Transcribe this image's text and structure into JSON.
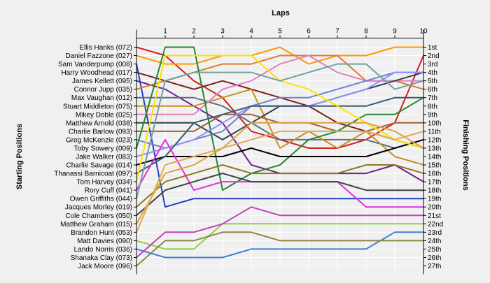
{
  "chart_data": {
    "type": "line",
    "title": "",
    "xlabel": "Laps",
    "ylabel_left": "Starting Positions",
    "ylabel_right": "Finishing Positions",
    "x": [
      0,
      1,
      2,
      3,
      4,
      5,
      6,
      7,
      8,
      9,
      10
    ],
    "x_tick_labels": [
      "1",
      "2",
      "3",
      "4",
      "5",
      "6",
      "7",
      "8",
      "9",
      "10"
    ],
    "y_range": [
      1,
      27
    ],
    "grid": true,
    "left_labels": [
      "Ellis Hanks (072)",
      "Daniel Fazzone (027)",
      "Sam Vanderpump (008)",
      "Harry Woodhead (017)",
      "James Kellett (095)",
      "Connor Jupp (035)",
      "Max Vaughan (012)",
      "Stuart Middleton (075)",
      "Mikey Doble (025)",
      "Matthew Arnold (038)",
      "Charlie Barlow (093)",
      "Greg McKenzie (023)",
      "Toby Sowery (009)",
      "Jake Walker (083)",
      "Charlie Savage (014)",
      "Thanassi Barnicoat (097)",
      "Tom Harvey (034)",
      "Rory Cuff (041)",
      "Owen Griffiths (044)",
      "Jacques Morley (019)",
      "Cole Chambers (050)",
      "Matthew Graham (015)",
      "Brandon Hunt (053)",
      "Matt Davies (090)",
      "Lando Norris (036)",
      "Shanaka Clay (073)",
      "Jack Moore (096)"
    ],
    "right_labels": [
      "1st",
      "2nd",
      "3rd",
      "4th",
      "5th",
      "6th",
      "7th",
      "8th",
      "9th",
      "10th",
      "11th",
      "12th",
      "13th",
      "14th",
      "15th",
      "16th",
      "17th",
      "18th",
      "19th",
      "20th",
      "21st",
      "22nd",
      "23rd",
      "24th",
      "25th",
      "26th",
      "27th"
    ],
    "series": [
      {
        "color": "#d42020",
        "values": [
          1,
          2,
          5,
          7,
          11,
          12,
          13,
          13,
          12,
          10,
          2
        ]
      },
      {
        "color": "#ff9900",
        "values": [
          2,
          3,
          3,
          2,
          2,
          1,
          3,
          2,
          2,
          1,
          1
        ]
      },
      {
        "color": "#2040c0",
        "values": [
          3,
          20,
          19,
          19,
          19,
          19,
          19,
          19,
          19,
          19,
          19
        ]
      },
      {
        "color": "#7a1e1e",
        "values": [
          4,
          5,
          6,
          5,
          6,
          7,
          8,
          10,
          11,
          12,
          13
        ]
      },
      {
        "color": "#6e2288",
        "values": [
          5,
          6,
          8,
          10,
          15,
          16,
          16,
          16,
          16,
          15,
          17
        ]
      },
      {
        "color": "#e07a30",
        "values": [
          6,
          5,
          4,
          3,
          3,
          2,
          2,
          2,
          5,
          5,
          6
        ]
      },
      {
        "color": "#5a6e80",
        "values": [
          7,
          7,
          7,
          8,
          10,
          12,
          12,
          12,
          12,
          13,
          12
        ]
      },
      {
        "color": "#c89020",
        "values": [
          8,
          8,
          8,
          7,
          6,
          13,
          11,
          13,
          11,
          14,
          15
        ]
      },
      {
        "color": "#e080c0",
        "values": [
          9,
          9,
          9,
          6,
          5,
          3,
          2,
          4,
          5,
          5,
          5
        ]
      },
      {
        "color": "#304050",
        "values": [
          10,
          10,
          10,
          12,
          10,
          8,
          8,
          7,
          6,
          5,
          4
        ]
      },
      {
        "color": "#a06030",
        "values": [
          11,
          11,
          11,
          9,
          9,
          10,
          10,
          11,
          11,
          10,
          10
        ]
      },
      {
        "color": "#7080d0",
        "values": [
          12,
          13,
          12,
          11,
          8,
          7,
          7,
          6,
          5,
          4,
          4
        ]
      },
      {
        "color": "#208830",
        "values": [
          13,
          1,
          1,
          18,
          16,
          15,
          12,
          11,
          9,
          9,
          7
        ]
      },
      {
        "color": "#9090ff",
        "values": [
          14,
          13,
          12,
          10,
          8,
          8,
          8,
          7,
          6,
          4,
          4
        ]
      },
      {
        "color": "#000000",
        "values": [
          15,
          14,
          14,
          14,
          13,
          14,
          14,
          14,
          14,
          13,
          12
        ]
      },
      {
        "color": "#3a5a70",
        "values": [
          16,
          14,
          10,
          9,
          8,
          8,
          8,
          8,
          8,
          7,
          7
        ]
      },
      {
        "color": "#ffe000",
        "values": [
          17,
          2,
          2,
          2,
          2,
          5,
          6,
          8,
          10,
          12,
          13
        ]
      },
      {
        "color": "#e030e0",
        "values": [
          18,
          12,
          18,
          17,
          17,
          17,
          17,
          17,
          20,
          20,
          20
        ]
      },
      {
        "color": "#70a0a0",
        "values": [
          19,
          5,
          4,
          4,
          4,
          5,
          4,
          3,
          3,
          6,
          5
        ]
      },
      {
        "color": "#8a7a20",
        "values": [
          20,
          17,
          16,
          15,
          16,
          16,
          16,
          16,
          15,
          15,
          16
        ]
      },
      {
        "color": "#404040",
        "values": [
          21,
          18,
          17,
          16,
          17,
          17,
          17,
          17,
          18,
          18,
          18
        ]
      },
      {
        "color": "#e0a040",
        "values": [
          22,
          16,
          15,
          13,
          10,
          10,
          10,
          10,
          10,
          11,
          13
        ]
      },
      {
        "color": "#ddaa55",
        "values": [
          23,
          15,
          14,
          13,
          12,
          11,
          11,
          11,
          11,
          12,
          11
        ]
      },
      {
        "color": "#90d040",
        "values": [
          24,
          25,
          25,
          22,
          22,
          22,
          22,
          22,
          22,
          22,
          22
        ]
      },
      {
        "color": "#4080d0",
        "values": [
          25,
          26,
          26,
          26,
          25,
          25,
          25,
          25,
          25,
          23,
          23
        ]
      },
      {
        "color": "#c040c0",
        "values": [
          26,
          23,
          23,
          22,
          20,
          21,
          21,
          21,
          21,
          21,
          21
        ]
      },
      {
        "color": "#888844",
        "values": [
          27,
          24,
          24,
          23,
          23,
          24,
          24,
          24,
          24,
          24,
          24
        ]
      }
    ]
  }
}
